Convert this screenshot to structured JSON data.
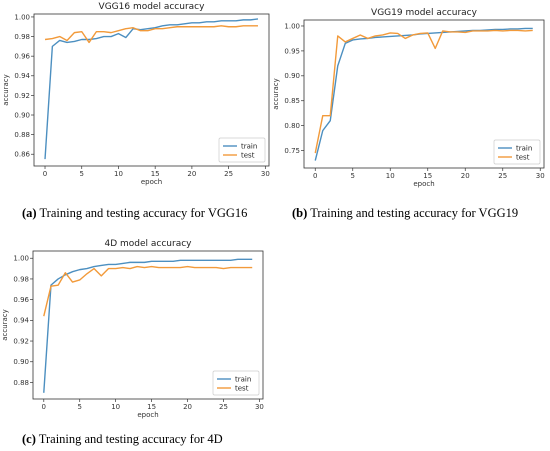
{
  "colors": {
    "train": "#4c8fc0",
    "test": "#f29a3a"
  },
  "captions": [
    {
      "label": "(a)",
      "text": "Training and testing accuracy for VGG16"
    },
    {
      "label": "(b)",
      "text": "Training and testing accuracy for VGG19"
    },
    {
      "label": "(c)",
      "text": "Training and testing accuracy for 4D"
    }
  ],
  "chart_data": [
    {
      "type": "line",
      "title": "VGG16 model accuracy",
      "xlabel": "epoch",
      "ylabel": "accuracy",
      "xlim": [
        -1.5,
        30.5
      ],
      "ylim": [
        0.848,
        1.003
      ],
      "xticks": [
        0,
        5,
        10,
        15,
        20,
        25,
        30
      ],
      "yticks": [
        0.86,
        0.88,
        0.9,
        0.92,
        0.94,
        0.96,
        0.98,
        1.0
      ],
      "ytick_labels": [
        "0.86",
        "0.88",
        "0.90",
        "0.92",
        "0.94",
        "0.96",
        "0.98",
        "1.00"
      ],
      "legend": "lower-right",
      "x": [
        0,
        1,
        2,
        3,
        4,
        5,
        6,
        7,
        8,
        9,
        10,
        11,
        12,
        13,
        14,
        15,
        16,
        17,
        18,
        19,
        20,
        21,
        22,
        23,
        24,
        25,
        26,
        27,
        28,
        29
      ],
      "series": [
        {
          "name": "train",
          "values": [
            0.855,
            0.97,
            0.976,
            0.974,
            0.975,
            0.977,
            0.977,
            0.978,
            0.98,
            0.98,
            0.983,
            0.979,
            0.988,
            0.987,
            0.988,
            0.989,
            0.991,
            0.992,
            0.992,
            0.993,
            0.994,
            0.994,
            0.995,
            0.995,
            0.996,
            0.996,
            0.996,
            0.997,
            0.997,
            0.998
          ]
        },
        {
          "name": "test",
          "values": [
            0.977,
            0.978,
            0.98,
            0.976,
            0.984,
            0.985,
            0.974,
            0.985,
            0.985,
            0.984,
            0.986,
            0.988,
            0.989,
            0.986,
            0.986,
            0.988,
            0.988,
            0.989,
            0.99,
            0.99,
            0.99,
            0.99,
            0.99,
            0.99,
            0.991,
            0.99,
            0.99,
            0.991,
            0.991,
            0.991
          ]
        }
      ]
    },
    {
      "type": "line",
      "title": "VGG19 model accuracy",
      "xlabel": "epoch",
      "ylabel": "accuracy",
      "xlim": [
        -1.5,
        30.5
      ],
      "ylim": [
        0.715,
        1.012
      ],
      "xticks": [
        0,
        5,
        10,
        15,
        20,
        25,
        30
      ],
      "yticks": [
        0.75,
        0.8,
        0.85,
        0.9,
        0.95,
        1.0
      ],
      "ytick_labels": [
        "0.75",
        "0.80",
        "0.85",
        "0.90",
        "0.95",
        "1.00"
      ],
      "legend": "lower-right",
      "x": [
        0,
        1,
        2,
        3,
        4,
        5,
        6,
        7,
        8,
        9,
        10,
        11,
        12,
        13,
        14,
        15,
        16,
        17,
        18,
        19,
        20,
        21,
        22,
        23,
        24,
        25,
        26,
        27,
        28,
        29
      ],
      "series": [
        {
          "name": "train",
          "values": [
            0.73,
            0.79,
            0.81,
            0.92,
            0.965,
            0.972,
            0.974,
            0.975,
            0.977,
            0.978,
            0.979,
            0.98,
            0.981,
            0.982,
            0.984,
            0.985,
            0.986,
            0.987,
            0.988,
            0.989,
            0.99,
            0.991,
            0.991,
            0.992,
            0.993,
            0.993,
            0.994,
            0.994,
            0.995,
            0.995
          ]
        },
        {
          "name": "test",
          "values": [
            0.745,
            0.82,
            0.82,
            0.98,
            0.968,
            0.975,
            0.982,
            0.975,
            0.98,
            0.982,
            0.986,
            0.985,
            0.975,
            0.982,
            0.985,
            0.986,
            0.955,
            0.99,
            0.988,
            0.988,
            0.987,
            0.99,
            0.99,
            0.99,
            0.991,
            0.99,
            0.991,
            0.991,
            0.99,
            0.991
          ]
        }
      ]
    },
    {
      "type": "line",
      "title": "4D model accuracy",
      "xlabel": "epoch",
      "ylabel": "accuracy",
      "xlim": [
        -1.5,
        30.5
      ],
      "ylim": [
        0.864,
        1.007
      ],
      "xticks": [
        0,
        5,
        10,
        15,
        20,
        25,
        30
      ],
      "yticks": [
        0.88,
        0.9,
        0.92,
        0.94,
        0.96,
        0.98,
        1.0
      ],
      "ytick_labels": [
        "0.88",
        "0.90",
        "0.92",
        "0.94",
        "0.96",
        "0.98",
        "1.00"
      ],
      "legend": "lower-right",
      "x": [
        0,
        1,
        2,
        3,
        4,
        5,
        6,
        7,
        8,
        9,
        10,
        11,
        12,
        13,
        14,
        15,
        16,
        17,
        18,
        19,
        20,
        21,
        22,
        23,
        24,
        25,
        26,
        27,
        28,
        29
      ],
      "series": [
        {
          "name": "train",
          "values": [
            0.87,
            0.974,
            0.98,
            0.984,
            0.987,
            0.989,
            0.99,
            0.992,
            0.993,
            0.994,
            0.994,
            0.995,
            0.996,
            0.996,
            0.996,
            0.997,
            0.997,
            0.997,
            0.997,
            0.998,
            0.998,
            0.998,
            0.998,
            0.998,
            0.998,
            0.998,
            0.998,
            0.999,
            0.999,
            0.999
          ]
        },
        {
          "name": "test",
          "values": [
            0.944,
            0.973,
            0.974,
            0.986,
            0.977,
            0.979,
            0.985,
            0.99,
            0.983,
            0.99,
            0.99,
            0.991,
            0.99,
            0.992,
            0.991,
            0.992,
            0.991,
            0.991,
            0.991,
            0.991,
            0.992,
            0.991,
            0.991,
            0.991,
            0.991,
            0.99,
            0.991,
            0.991,
            0.991,
            0.991
          ]
        }
      ]
    }
  ]
}
